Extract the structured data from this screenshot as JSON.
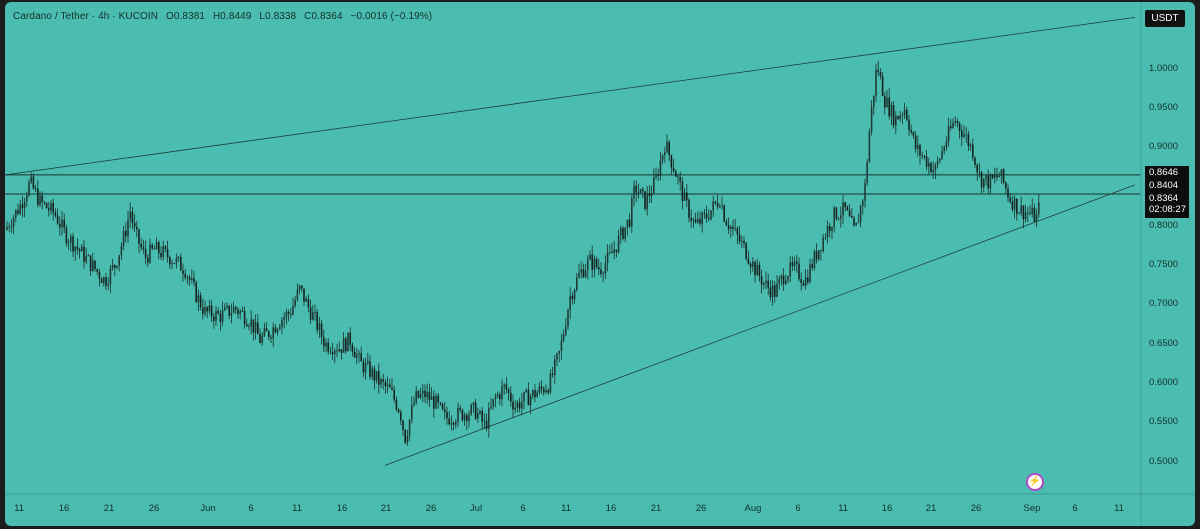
{
  "header": {
    "symbol": "Cardano / Tether · 4h · KUCOIN",
    "open": "O0.8381",
    "high": "H0.8449",
    "low": "L0.8338",
    "close": "C0.8364",
    "change": "−0.0016 (−0.19%)"
  },
  "axis_label": "USDT",
  "price_tags": {
    "level1": "0.8646",
    "level2": "0.8404",
    "last": "0.8364",
    "countdown": "02:08:27"
  },
  "colors": {
    "background": "#4bbdb0",
    "candles": "#1a2f2c",
    "lines": "#1f3d39"
  },
  "chart_data": {
    "type": "line",
    "series_style": "candlestick",
    "y_ticks": [
      "1.0000",
      "0.9500",
      "0.9000",
      "0.8500",
      "0.8000",
      "0.7500",
      "0.7000",
      "0.6500",
      "0.6000",
      "0.5500",
      "0.5000"
    ],
    "x_ticks": [
      "11",
      "16",
      "21",
      "26",
      "Jun",
      "6",
      "11",
      "16",
      "21",
      "26",
      "Jul",
      "6",
      "11",
      "16",
      "21",
      "26",
      "Aug",
      "6",
      "11",
      "16",
      "21",
      "26",
      "Sep",
      "6",
      "11"
    ],
    "ylim": [
      0.47,
      1.05
    ],
    "horizontal_levels": [
      0.8646,
      0.8404
    ],
    "trendlines": [
      {
        "name": "upper",
        "from": [
          0,
          0.8646
        ],
        "to": [
          1130,
          1.065
        ]
      },
      {
        "name": "lower",
        "from": [
          380,
          0.495
        ],
        "to": [
          1130,
          0.852
        ]
      }
    ],
    "close_path": [
      [
        0,
        0.795
      ],
      [
        15,
        0.825
      ],
      [
        25,
        0.855
      ],
      [
        35,
        0.83
      ],
      [
        50,
        0.815
      ],
      [
        60,
        0.79
      ],
      [
        70,
        0.775
      ],
      [
        80,
        0.76
      ],
      [
        90,
        0.745
      ],
      [
        100,
        0.73
      ],
      [
        110,
        0.75
      ],
      [
        120,
        0.79
      ],
      [
        125,
        0.82
      ],
      [
        130,
        0.79
      ],
      [
        140,
        0.76
      ],
      [
        150,
        0.77
      ],
      [
        165,
        0.76
      ],
      [
        180,
        0.745
      ],
      [
        190,
        0.715
      ],
      [
        200,
        0.69
      ],
      [
        215,
        0.685
      ],
      [
        230,
        0.695
      ],
      [
        245,
        0.68
      ],
      [
        255,
        0.655
      ],
      [
        265,
        0.665
      ],
      [
        275,
        0.68
      ],
      [
        285,
        0.69
      ],
      [
        295,
        0.72
      ],
      [
        300,
        0.705
      ],
      [
        310,
        0.68
      ],
      [
        320,
        0.65
      ],
      [
        335,
        0.645
      ],
      [
        345,
        0.655
      ],
      [
        355,
        0.625
      ],
      [
        365,
        0.615
      ],
      [
        375,
        0.6
      ],
      [
        385,
        0.59
      ],
      [
        395,
        0.565
      ],
      [
        400,
        0.53
      ],
      [
        410,
        0.58
      ],
      [
        420,
        0.585
      ],
      [
        430,
        0.575
      ],
      [
        440,
        0.555
      ],
      [
        455,
        0.56
      ],
      [
        470,
        0.565
      ],
      [
        480,
        0.545
      ],
      [
        490,
        0.58
      ],
      [
        500,
        0.595
      ],
      [
        510,
        0.57
      ],
      [
        520,
        0.58
      ],
      [
        535,
        0.59
      ],
      [
        545,
        0.6
      ],
      [
        555,
        0.64
      ],
      [
        565,
        0.71
      ],
      [
        575,
        0.74
      ],
      [
        585,
        0.755
      ],
      [
        595,
        0.745
      ],
      [
        605,
        0.76
      ],
      [
        615,
        0.785
      ],
      [
        625,
        0.81
      ],
      [
        630,
        0.85
      ],
      [
        640,
        0.83
      ],
      [
        650,
        0.855
      ],
      [
        660,
        0.905
      ],
      [
        670,
        0.87
      ],
      [
        680,
        0.83
      ],
      [
        690,
        0.8
      ],
      [
        700,
        0.81
      ],
      [
        715,
        0.835
      ],
      [
        720,
        0.81
      ],
      [
        730,
        0.79
      ],
      [
        740,
        0.77
      ],
      [
        750,
        0.745
      ],
      [
        760,
        0.725
      ],
      [
        770,
        0.715
      ],
      [
        780,
        0.74
      ],
      [
        790,
        0.745
      ],
      [
        800,
        0.73
      ],
      [
        810,
        0.76
      ],
      [
        820,
        0.79
      ],
      [
        830,
        0.815
      ],
      [
        840,
        0.82
      ],
      [
        850,
        0.79
      ],
      [
        860,
        0.85
      ],
      [
        865,
        0.93
      ],
      [
        872,
        1.005
      ],
      [
        880,
        0.96
      ],
      [
        890,
        0.935
      ],
      [
        900,
        0.95
      ],
      [
        910,
        0.9
      ],
      [
        920,
        0.885
      ],
      [
        930,
        0.87
      ],
      [
        940,
        0.905
      ],
      [
        950,
        0.935
      ],
      [
        960,
        0.915
      ],
      [
        968,
        0.895
      ],
      [
        975,
        0.86
      ],
      [
        985,
        0.855
      ],
      [
        995,
        0.865
      ],
      [
        1005,
        0.835
      ],
      [
        1015,
        0.82
      ],
      [
        1025,
        0.815
      ],
      [
        1032,
        0.81
      ],
      [
        1036,
        0.836
      ]
    ]
  }
}
